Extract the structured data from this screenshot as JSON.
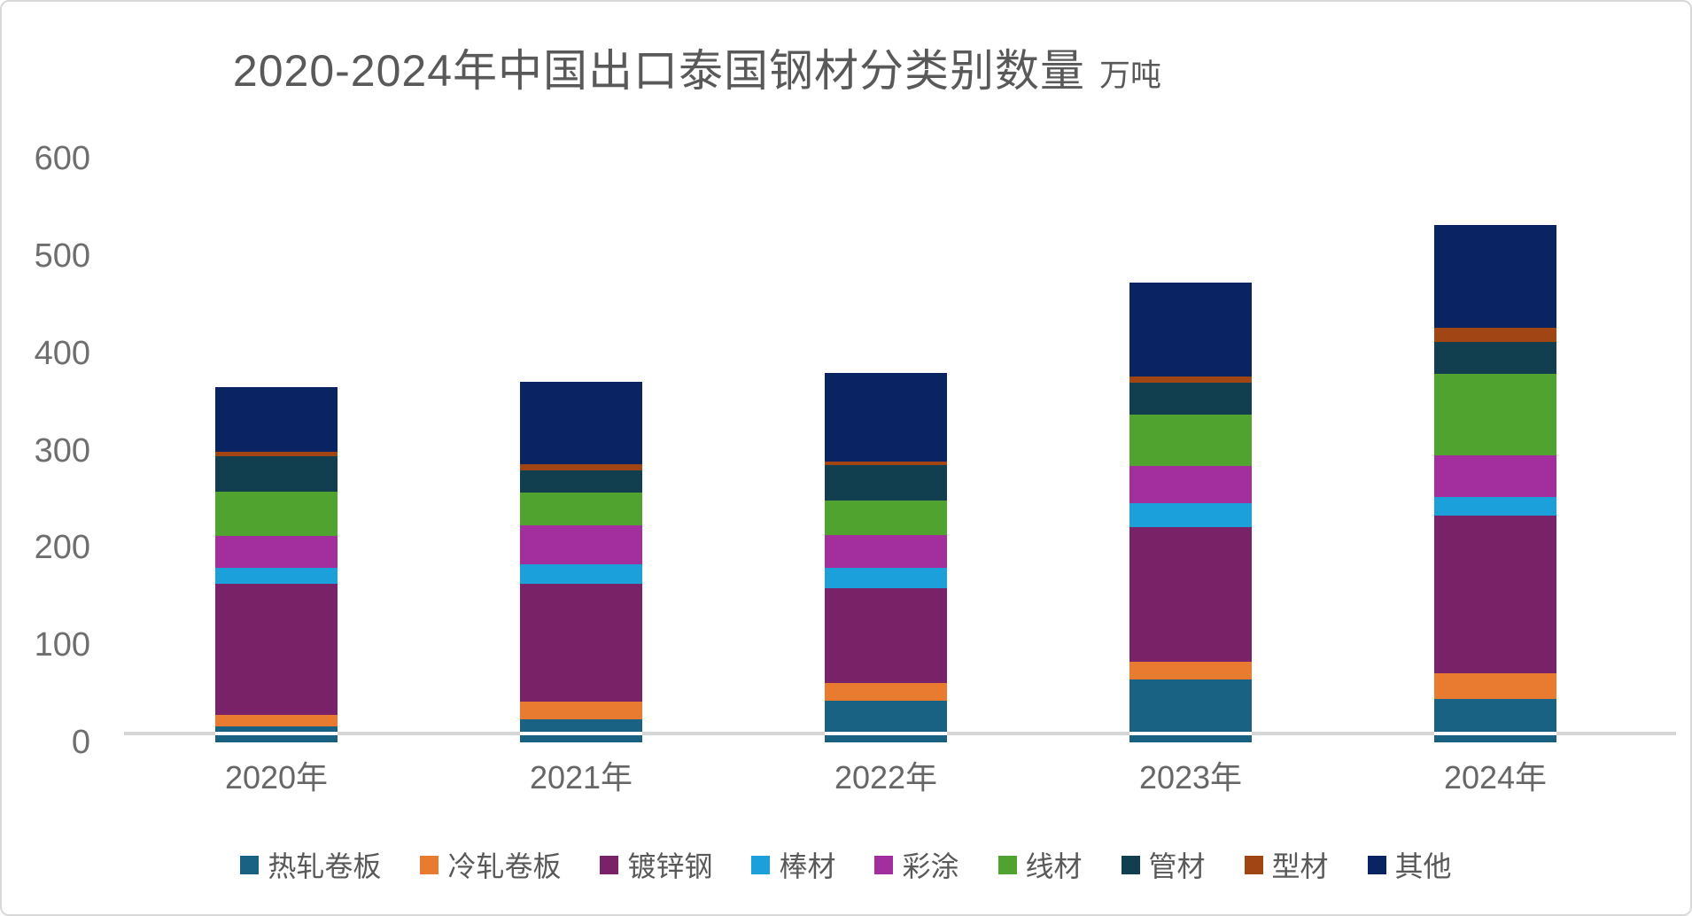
{
  "title": {
    "text": "2020-2024年中国出口泰国钢材分类别数量",
    "unit": "万吨"
  },
  "chart_data": {
    "type": "bar",
    "stacked": true,
    "title": "2020-2024年中国出口泰国钢材分类别数量",
    "unit": "万吨",
    "categories": [
      "2020年",
      "2021年",
      "2022年",
      "2023年",
      "2024年"
    ],
    "series": [
      {
        "name": "热轧卷板",
        "color": "#1a6284",
        "values": [
          16,
          24,
          43,
          65,
          45
        ]
      },
      {
        "name": "冷轧卷板",
        "color": "#e87b2f",
        "values": [
          12,
          18,
          18,
          18,
          26
        ]
      },
      {
        "name": "镀锌钢",
        "color": "#7a2268",
        "values": [
          135,
          121,
          97,
          138,
          162
        ]
      },
      {
        "name": "棒材",
        "color": "#1ca0db",
        "values": [
          16,
          20,
          21,
          25,
          19
        ]
      },
      {
        "name": "彩涂",
        "color": "#a32f9e",
        "values": [
          33,
          40,
          34,
          38,
          43
        ]
      },
      {
        "name": "线材",
        "color": "#4fa32e",
        "values": [
          46,
          34,
          36,
          53,
          84
        ]
      },
      {
        "name": "管材",
        "color": "#123f50",
        "values": [
          36,
          23,
          36,
          33,
          33
        ]
      },
      {
        "name": "型材",
        "color": "#a04513",
        "values": [
          5,
          6,
          4,
          6,
          14
        ]
      },
      {
        "name": "其他",
        "color": "#0a2463",
        "values": [
          66,
          85,
          91,
          97,
          106
        ]
      }
    ],
    "totals": [
      365,
      371,
      380,
      473,
      532
    ],
    "ylim": [
      0,
      600
    ],
    "yticks": [
      0,
      100,
      200,
      300,
      400,
      500,
      600
    ],
    "grid": false,
    "legend_position": "bottom",
    "axis_line_color": "#d6d6d6",
    "tick_label_color": "#6e6e6e",
    "title_color": "#595959"
  }
}
